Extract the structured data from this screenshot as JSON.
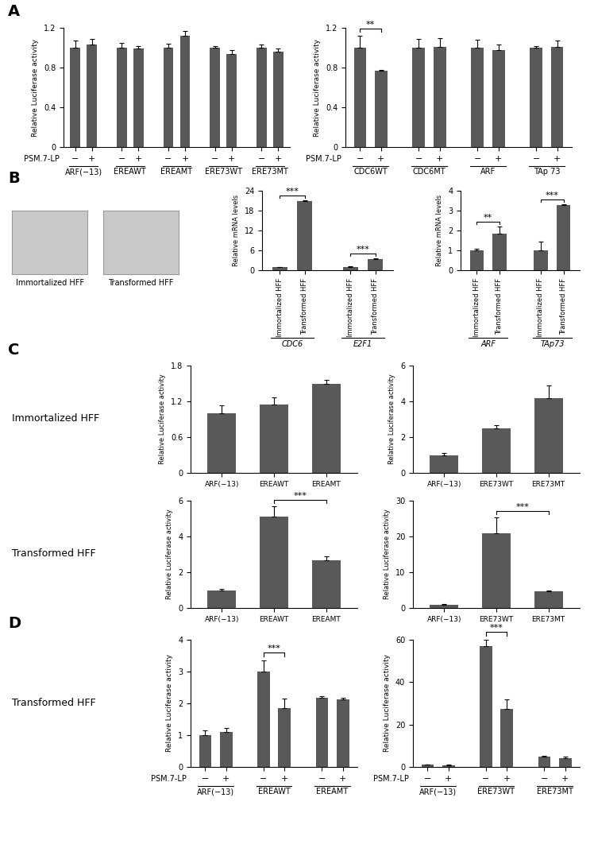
{
  "figure": {
    "panel_labels": [
      "A",
      "B",
      "C",
      "D"
    ],
    "row_labels": [
      "Immortalized HFF",
      "Transformed HFF",
      "Transformed HFF"
    ],
    "image_captions": [
      "Immortalized HFF",
      "Transformed HFF"
    ]
  },
  "chart_data": [
    {
      "type": "bar",
      "ylabel": "Relative Luciferase activity",
      "color": "#595959",
      "categories": [
        "ARF(−13)",
        "EREAWT",
        "EREAMT",
        "ERE73WT",
        "ERE73MT"
      ],
      "subcategory_label": "PSM.7-LP",
      "series": [
        {
          "name": "−",
          "values": [
            1.0,
            1.0,
            1.0,
            1.0,
            1.0
          ],
          "errors": [
            0.07,
            0.05,
            0.04,
            0.02,
            0.03
          ]
        },
        {
          "name": "+",
          "values": [
            1.03,
            0.99,
            1.12,
            0.94,
            0.96
          ],
          "errors": [
            0.06,
            0.03,
            0.05,
            0.04,
            0.03
          ]
        }
      ],
      "ylim": [
        0,
        1.2
      ],
      "yticks": [
        0,
        0.4,
        0.8,
        1.2
      ],
      "annotations": []
    },
    {
      "type": "bar",
      "ylabel": "Relative Luciferase activity",
      "color": "#595959",
      "categories": [
        "CDC6WT",
        "CDC6MT",
        "ARF",
        "TAp 73"
      ],
      "subcategory_label": "PSM.7-LP",
      "series": [
        {
          "name": "−",
          "values": [
            1.0,
            1.0,
            1.0,
            1.0
          ],
          "errors": [
            0.12,
            0.09,
            0.08,
            0.02
          ]
        },
        {
          "name": "+",
          "values": [
            0.77,
            1.01,
            0.98,
            1.01
          ],
          "errors": [
            0.01,
            0.09,
            0.05,
            0.06
          ]
        }
      ],
      "ylim": [
        0,
        1.2
      ],
      "yticks": [
        0,
        0.4,
        0.8,
        1.2
      ],
      "annotations": [
        {
          "text": "**",
          "category": "CDC6WT"
        }
      ]
    },
    {
      "type": "bar",
      "ylabel": "Relative mRNA levels",
      "color": "#595959",
      "categories": [
        "CDC6",
        "E2F1"
      ],
      "series": [
        {
          "name": "Immortalized HFF",
          "values": [
            1.0,
            1.0
          ],
          "errors": [
            0.05,
            0.2
          ]
        },
        {
          "name": "Transformed HFF",
          "values": [
            20.8,
            3.3
          ],
          "errors": [
            0.4,
            0.3
          ]
        }
      ],
      "ylim": [
        0,
        24
      ],
      "yticks": [
        0,
        6,
        12,
        18,
        24
      ],
      "annotations": [
        {
          "text": "***",
          "category": "CDC6"
        },
        {
          "text": "***",
          "category": "E2F1"
        }
      ]
    },
    {
      "type": "bar",
      "ylabel": "Relative mRNA levels",
      "color": "#595959",
      "categories": [
        "ARF",
        "TAp73"
      ],
      "series": [
        {
          "name": "Immortalized HFF",
          "values": [
            1.0,
            1.0
          ],
          "errors": [
            0.07,
            0.45
          ]
        },
        {
          "name": "Transformed HFF",
          "values": [
            1.85,
            3.27
          ],
          "errors": [
            0.35,
            0.05
          ]
        }
      ],
      "ylim": [
        0,
        4
      ],
      "yticks": [
        0,
        1,
        2,
        3,
        4
      ],
      "annotations": [
        {
          "text": "**",
          "category": "ARF"
        },
        {
          "text": "***",
          "category": "TAp73"
        }
      ]
    },
    {
      "type": "bar",
      "ylabel": "Relative Luciferase activity",
      "color": "#595959",
      "categories": [
        "ARF(−13)",
        "EREAWT",
        "EREAMT"
      ],
      "values": [
        1.0,
        1.15,
        1.5
      ],
      "errors": [
        0.13,
        0.12,
        0.06
      ],
      "ylim": [
        0,
        1.8
      ],
      "yticks": [
        0,
        0.6,
        1.2,
        1.8
      ],
      "annotations": []
    },
    {
      "type": "bar",
      "ylabel": "Relative Luciferase activity",
      "color": "#595959",
      "categories": [
        "ARF(−13)",
        "ERE73WT",
        "ERE73MT"
      ],
      "values": [
        1.0,
        2.5,
        4.2
      ],
      "errors": [
        0.12,
        0.15,
        0.7
      ],
      "ylim": [
        0,
        6
      ],
      "yticks": [
        0,
        2,
        4,
        6
      ],
      "annotations": []
    },
    {
      "type": "bar",
      "ylabel": "Relative Luciferase activity",
      "color": "#595959",
      "categories": [
        "ARF(−13)",
        "EREAWT",
        "EREAMT"
      ],
      "values": [
        1.0,
        5.1,
        2.65
      ],
      "errors": [
        0.05,
        0.6,
        0.25
      ],
      "ylim": [
        0,
        6
      ],
      "yticks": [
        0,
        2,
        4,
        6
      ],
      "annotations": [
        {
          "text": "***",
          "from": "EREAWT",
          "to": "EREAMT"
        }
      ]
    },
    {
      "type": "bar",
      "ylabel": "Relative Luciferase activity",
      "color": "#595959",
      "categories": [
        "ARF(−13)",
        "ERE73WT",
        "ERE73MT"
      ],
      "values": [
        1.0,
        21.0,
        4.7
      ],
      "errors": [
        0.1,
        4.3,
        0.1
      ],
      "ylim": [
        0,
        30
      ],
      "yticks": [
        0,
        10,
        20,
        30
      ],
      "annotations": [
        {
          "text": "***",
          "from": "ERE73WT",
          "to": "ERE73MT"
        }
      ]
    },
    {
      "type": "bar",
      "ylabel": "Relative Luciferase activity",
      "color": "#595959",
      "categories": [
        "ARF(−13)",
        "EREAWT",
        "EREAMT"
      ],
      "subcategory_label": "PSM.7-LP",
      "series": [
        {
          "name": "−",
          "values": [
            1.0,
            3.0,
            2.18
          ],
          "errors": [
            0.15,
            0.35,
            0.05
          ]
        },
        {
          "name": "+",
          "values": [
            1.1,
            1.85,
            2.12
          ],
          "errors": [
            0.12,
            0.3,
            0.05
          ]
        }
      ],
      "ylim": [
        0,
        4
      ],
      "yticks": [
        0,
        1,
        2,
        3,
        4
      ],
      "annotations": [
        {
          "text": "***",
          "category": "EREAWT"
        }
      ]
    },
    {
      "type": "bar",
      "ylabel": "Relative Luciferase activity",
      "color": "#595959",
      "categories": [
        "ARF(−13)",
        "ERE73WT",
        "ERE73MT"
      ],
      "subcategory_label": "PSM.7-LP",
      "series": [
        {
          "name": "−",
          "values": [
            1.0,
            57.0,
            5.0
          ],
          "errors": [
            0.1,
            3.0,
            0.3
          ]
        },
        {
          "name": "+",
          "values": [
            0.9,
            27.5,
            4.2
          ],
          "errors": [
            0.1,
            4.5,
            0.5
          ]
        }
      ],
      "ylim": [
        0,
        60
      ],
      "yticks": [
        0,
        20,
        40,
        60
      ],
      "annotations": [
        {
          "text": "***",
          "category": "ERE73WT"
        }
      ]
    }
  ]
}
